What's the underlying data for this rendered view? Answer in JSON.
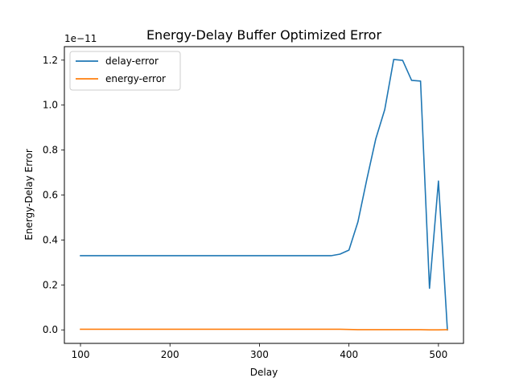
{
  "chart_data": {
    "type": "line",
    "title": "Energy-Delay Buffer Optimized Error",
    "xlabel": "Delay",
    "ylabel": "Energy-Delay Error",
    "y_offset_label": "1e−11",
    "xlim": [
      82,
      528
    ],
    "ylim": [
      -0.06,
      1.26
    ],
    "xticks": [
      100,
      200,
      300,
      400,
      500
    ],
    "xtick_labels": [
      "100",
      "200",
      "300",
      "400",
      "500"
    ],
    "yticks": [
      0.0,
      0.2,
      0.4,
      0.6,
      0.8,
      1.0,
      1.2
    ],
    "ytick_labels": [
      "0.0",
      "0.2",
      "0.4",
      "0.6",
      "0.8",
      "1.0",
      "1.2"
    ],
    "grid": false,
    "legend_position": "top-left",
    "series": [
      {
        "name": "delay-error",
        "color": "#1f77b4",
        "x": [
          100,
          110,
          120,
          130,
          140,
          150,
          160,
          170,
          180,
          190,
          200,
          210,
          220,
          230,
          240,
          250,
          260,
          270,
          280,
          290,
          300,
          310,
          320,
          330,
          340,
          350,
          360,
          370,
          380,
          390,
          400,
          410,
          420,
          430,
          440,
          450,
          460,
          470,
          480,
          490,
          500,
          510
        ],
        "values": [
          0.33,
          0.33,
          0.33,
          0.33,
          0.33,
          0.33,
          0.33,
          0.33,
          0.33,
          0.33,
          0.33,
          0.33,
          0.33,
          0.33,
          0.33,
          0.33,
          0.33,
          0.33,
          0.33,
          0.33,
          0.33,
          0.33,
          0.33,
          0.33,
          0.33,
          0.33,
          0.33,
          0.33,
          0.33,
          0.337,
          0.355,
          0.48,
          0.67,
          0.85,
          0.98,
          1.203,
          1.199,
          1.11,
          1.107,
          0.185,
          0.662,
          0.0
        ]
      },
      {
        "name": "energy-error",
        "color": "#ff7f0e",
        "x": [
          100,
          110,
          120,
          130,
          140,
          150,
          160,
          170,
          180,
          190,
          200,
          210,
          220,
          230,
          240,
          250,
          260,
          270,
          280,
          290,
          300,
          310,
          320,
          330,
          340,
          350,
          360,
          370,
          380,
          390,
          400,
          410,
          420,
          430,
          440,
          450,
          460,
          470,
          480,
          490,
          500,
          510
        ],
        "values": [
          0.003,
          0.003,
          0.003,
          0.003,
          0.003,
          0.003,
          0.003,
          0.003,
          0.003,
          0.003,
          0.003,
          0.003,
          0.003,
          0.003,
          0.003,
          0.003,
          0.003,
          0.003,
          0.003,
          0.003,
          0.003,
          0.003,
          0.003,
          0.003,
          0.003,
          0.003,
          0.003,
          0.003,
          0.003,
          0.003,
          0.002,
          0.001,
          0.001,
          0.001,
          0.001,
          0.001,
          0.001,
          0.001,
          0.001,
          0.0,
          0.0,
          0.001
        ]
      }
    ]
  }
}
